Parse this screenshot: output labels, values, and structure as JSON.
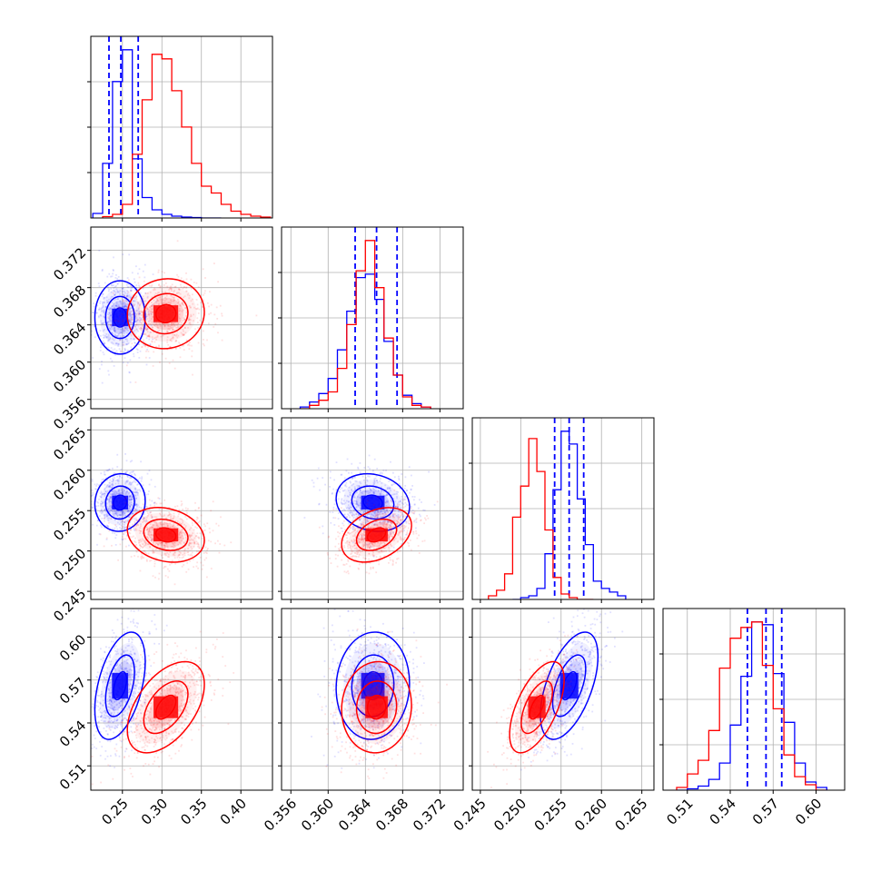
{
  "chart_data": {
    "type": "corner",
    "grid": true,
    "parameters": 4,
    "series": [
      {
        "color": "#0000ff",
        "histograms": [
          {
            "bins": [
              0.2125,
              0.225,
              0.2375,
              0.25,
              0.2625,
              0.275,
              0.2875,
              0.3,
              0.3125,
              0.325,
              0.3375,
              0.35,
              0.3625,
              0.375
            ],
            "heights": [
              0.1,
              1.2,
              3.0,
              3.7,
              1.3,
              0.45,
              0.18,
              0.08,
              0.04,
              0.02,
              0.01,
              0.0,
              0.0
            ],
            "quantiles": [
              0.233,
              0.248,
              0.27
            ]
          },
          {
            "bins": [
              0.357,
              0.358,
              0.359,
              0.36,
              0.361,
              0.362,
              0.363,
              0.364,
              0.365,
              0.366,
              0.367,
              0.368,
              0.369,
              0.37,
              0.371
            ],
            "heights": [
              0.01,
              0.04,
              0.09,
              0.18,
              0.35,
              0.58,
              0.78,
              0.8,
              0.65,
              0.4,
              0.2,
              0.08,
              0.03,
              0.01
            ],
            "quantiles": [
              0.3629,
              0.3652,
              0.3674
            ]
          },
          {
            "bins": [
              0.249,
              0.25,
              0.251,
              0.252,
              0.253,
              0.254,
              0.255,
              0.256,
              0.257,
              0.258,
              0.259,
              0.26,
              0.261,
              0.262,
              0.263
            ],
            "heights": [
              0.0,
              0.01,
              0.02,
              0.06,
              0.25,
              0.6,
              0.92,
              0.85,
              0.55,
              0.3,
              0.1,
              0.06,
              0.04,
              0.02
            ],
            "quantiles": [
              0.2542,
              0.256,
              0.2578
            ]
          },
          {
            "bins": [
              0.5025,
              0.51,
              0.5175,
              0.525,
              0.5325,
              0.54,
              0.5475,
              0.555,
              0.5625,
              0.57,
              0.5775,
              0.585,
              0.5925,
              0.6,
              0.6075
            ],
            "heights": [
              0.0,
              0.005,
              0.015,
              0.04,
              0.1,
              0.24,
              0.42,
              0.62,
              0.61,
              0.43,
              0.25,
              0.1,
              0.03,
              0.01
            ],
            "quantiles": [
              0.552,
              0.565,
              0.576
            ]
          }
        ],
        "means": [
          0.247,
          0.3648,
          0.256,
          0.566
        ],
        "sds": [
          0.017,
          0.0021,
          0.0019,
          0.02
        ],
        "rhos": [
          0.0,
          0.05,
          -0.15,
          0.45,
          0.05,
          0.55
        ]
      },
      {
        "color": "#ff0000",
        "histograms": [
          {
            "bins": [
              0.225,
              0.2375,
              0.25,
              0.2625,
              0.275,
              0.2875,
              0.3,
              0.3125,
              0.325,
              0.3375,
              0.35,
              0.3625,
              0.375,
              0.3875,
              0.4,
              0.4125,
              0.425,
              0.4375
            ],
            "heights": [
              0.03,
              0.08,
              0.3,
              1.4,
              2.6,
              3.6,
              3.5,
              2.8,
              2.0,
              1.2,
              0.7,
              0.55,
              0.3,
              0.15,
              0.08,
              0.04,
              0.02
            ],
            "quantiles": []
          },
          {
            "bins": [
              0.357,
              0.358,
              0.359,
              0.36,
              0.361,
              0.362,
              0.363,
              0.364,
              0.365,
              0.366,
              0.367,
              0.368,
              0.369,
              0.37,
              0.371
            ],
            "heights": [
              0.0,
              0.02,
              0.05,
              0.1,
              0.24,
              0.5,
              0.82,
              1.0,
              0.72,
              0.42,
              0.2,
              0.07,
              0.02,
              0.01
            ],
            "quantiles": []
          },
          {
            "bins": [
              0.246,
              0.247,
              0.248,
              0.249,
              0.25,
              0.251,
              0.252,
              0.253,
              0.254,
              0.255,
              0.256,
              0.257,
              0.258,
              0.259
            ],
            "heights": [
              0.02,
              0.05,
              0.14,
              0.45,
              0.62,
              0.88,
              0.7,
              0.38,
              0.12,
              0.03,
              0.01,
              0.0,
              0.0
            ],
            "quantiles": []
          },
          {
            "bins": [
              0.5025,
              0.51,
              0.5175,
              0.525,
              0.5325,
              0.54,
              0.5475,
              0.555,
              0.5625,
              0.57,
              0.5775,
              0.585,
              0.5925,
              0.6,
              0.6075
            ],
            "heights": [
              0.01,
              0.06,
              0.11,
              0.22,
              0.45,
              0.56,
              0.6,
              0.62,
              0.46,
              0.3,
              0.13,
              0.05,
              0.02,
              0.0
            ],
            "quantiles": []
          }
        ],
        "means": [
          0.305,
          0.3652,
          0.252,
          0.551
        ],
        "sds": [
          0.026,
          0.002,
          0.0018,
          0.017
        ],
        "rhos": [
          0.05,
          -0.2,
          0.35,
          0.5,
          0.05,
          0.6
        ]
      }
    ],
    "ranges": [
      [
        0.21,
        0.44
      ],
      [
        0.355,
        0.3745
      ],
      [
        0.244,
        0.2665
      ],
      [
        0.493,
        0.62
      ]
    ],
    "ticks": [
      [
        0.25,
        0.3,
        0.35,
        0.4
      ],
      [
        0.356,
        0.36,
        0.364,
        0.368,
        0.372
      ],
      [
        0.245,
        0.25,
        0.255,
        0.26,
        0.265
      ],
      [
        0.51,
        0.54,
        0.57,
        0.6
      ]
    ],
    "tick_labels": [
      [
        "0.25",
        "0.30",
        "0.35",
        "0.40"
      ],
      [
        "0.356",
        "0.360",
        "0.364",
        "0.368",
        "0.372"
      ],
      [
        "0.245",
        "0.250",
        "0.255",
        "0.260",
        "0.265"
      ],
      [
        "0.51",
        "0.54",
        "0.57",
        "0.60"
      ]
    ],
    "contour_levels": [
      0.39,
      0.86,
      1.5
    ]
  }
}
